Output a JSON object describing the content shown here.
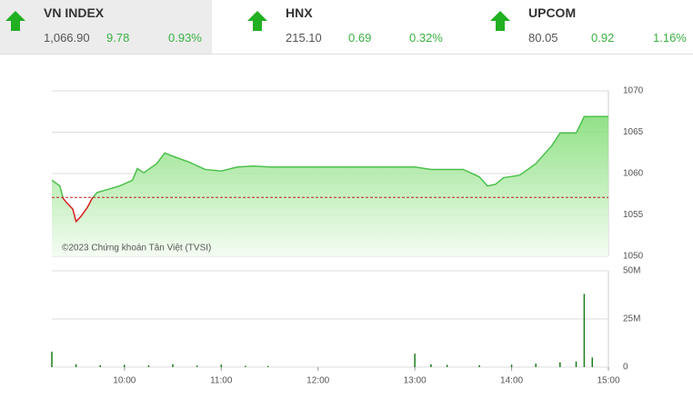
{
  "indices": [
    {
      "name": "VN INDEX",
      "value": "1,066.90",
      "change": "9.78",
      "percent": "0.93%"
    },
    {
      "name": "HNX",
      "value": "215.10",
      "change": "0.69",
      "percent": "0.32%"
    },
    {
      "name": "UPCOM",
      "value": "80.05",
      "change": "0.92",
      "percent": "1.16%"
    }
  ],
  "copyright": "©2023 Chứng khoán Tân Việt (TVSI)",
  "chart_data": [
    {
      "type": "line",
      "x": [
        "09:15",
        "09:20",
        "09:22",
        "09:25",
        "09:28",
        "09:30",
        "09:33",
        "09:37",
        "09:40",
        "09:43",
        "09:50",
        "09:57",
        "10:05",
        "10:08",
        "10:12",
        "10:20",
        "10:25",
        "10:30",
        "10:40",
        "10:50",
        "11:00",
        "11:10",
        "11:20",
        "11:30",
        "13:00",
        "13:10",
        "13:30",
        "13:40",
        "13:45",
        "13:50",
        "13:55",
        "14:05",
        "14:15",
        "14:25",
        "14:30",
        "14:40",
        "14:45",
        "15:00"
      ],
      "series": [
        {
          "color": "#4cc04c",
          "below_color": "#d42020",
          "values": [
            1059.2,
            1058.5,
            1057.0,
            1056.3,
            1055.7,
            1054.2,
            1054.8,
            1055.9,
            1057.0,
            1057.7,
            1058.1,
            1058.5,
            1059.2,
            1060.6,
            1060.1,
            1061.2,
            1062.5,
            1062.1,
            1061.4,
            1060.5,
            1060.3,
            1060.8,
            1060.9,
            1060.8,
            1060.8,
            1060.5,
            1060.5,
            1059.6,
            1058.5,
            1058.7,
            1059.5,
            1059.8,
            1061.2,
            1063.4,
            1064.9,
            1064.9,
            1066.9,
            1066.9
          ]
        }
      ],
      "reference": 1057.12,
      "xlim": [
        "09:15",
        "15:00"
      ],
      "ylim": [
        1050,
        1070
      ],
      "yticks": [
        1050,
        1055,
        1060,
        1065,
        1070
      ],
      "grid": true
    },
    {
      "type": "bar",
      "x": [
        "09:15",
        "09:30",
        "09:45",
        "10:00",
        "10:15",
        "10:30",
        "10:45",
        "11:00",
        "11:15",
        "11:29",
        "13:00",
        "13:10",
        "13:20",
        "13:40",
        "14:00",
        "14:15",
        "14:30",
        "14:40",
        "14:45",
        "14:50"
      ],
      "series": [
        {
          "color": "#1c7c1c",
          "values": [
            8000000,
            1500000,
            1000000,
            1200000,
            900000,
            1500000,
            800000,
            1300000,
            700000,
            600000,
            7000000,
            1500000,
            1200000,
            1000000,
            1300000,
            1800000,
            2500000,
            3000000,
            38000000,
            5000000
          ]
        }
      ],
      "xlim": [
        "09:15",
        "15:00"
      ],
      "xticks": [
        "10:00",
        "11:00",
        "12:00",
        "13:00",
        "14:00",
        "15:00"
      ],
      "ylim": [
        0,
        50000000
      ],
      "yticks": [
        {
          "value": 0,
          "label": "0"
        },
        {
          "value": 25000000,
          "label": "25M"
        },
        {
          "value": 50000000,
          "label": "50M"
        }
      ],
      "grid": true
    }
  ]
}
